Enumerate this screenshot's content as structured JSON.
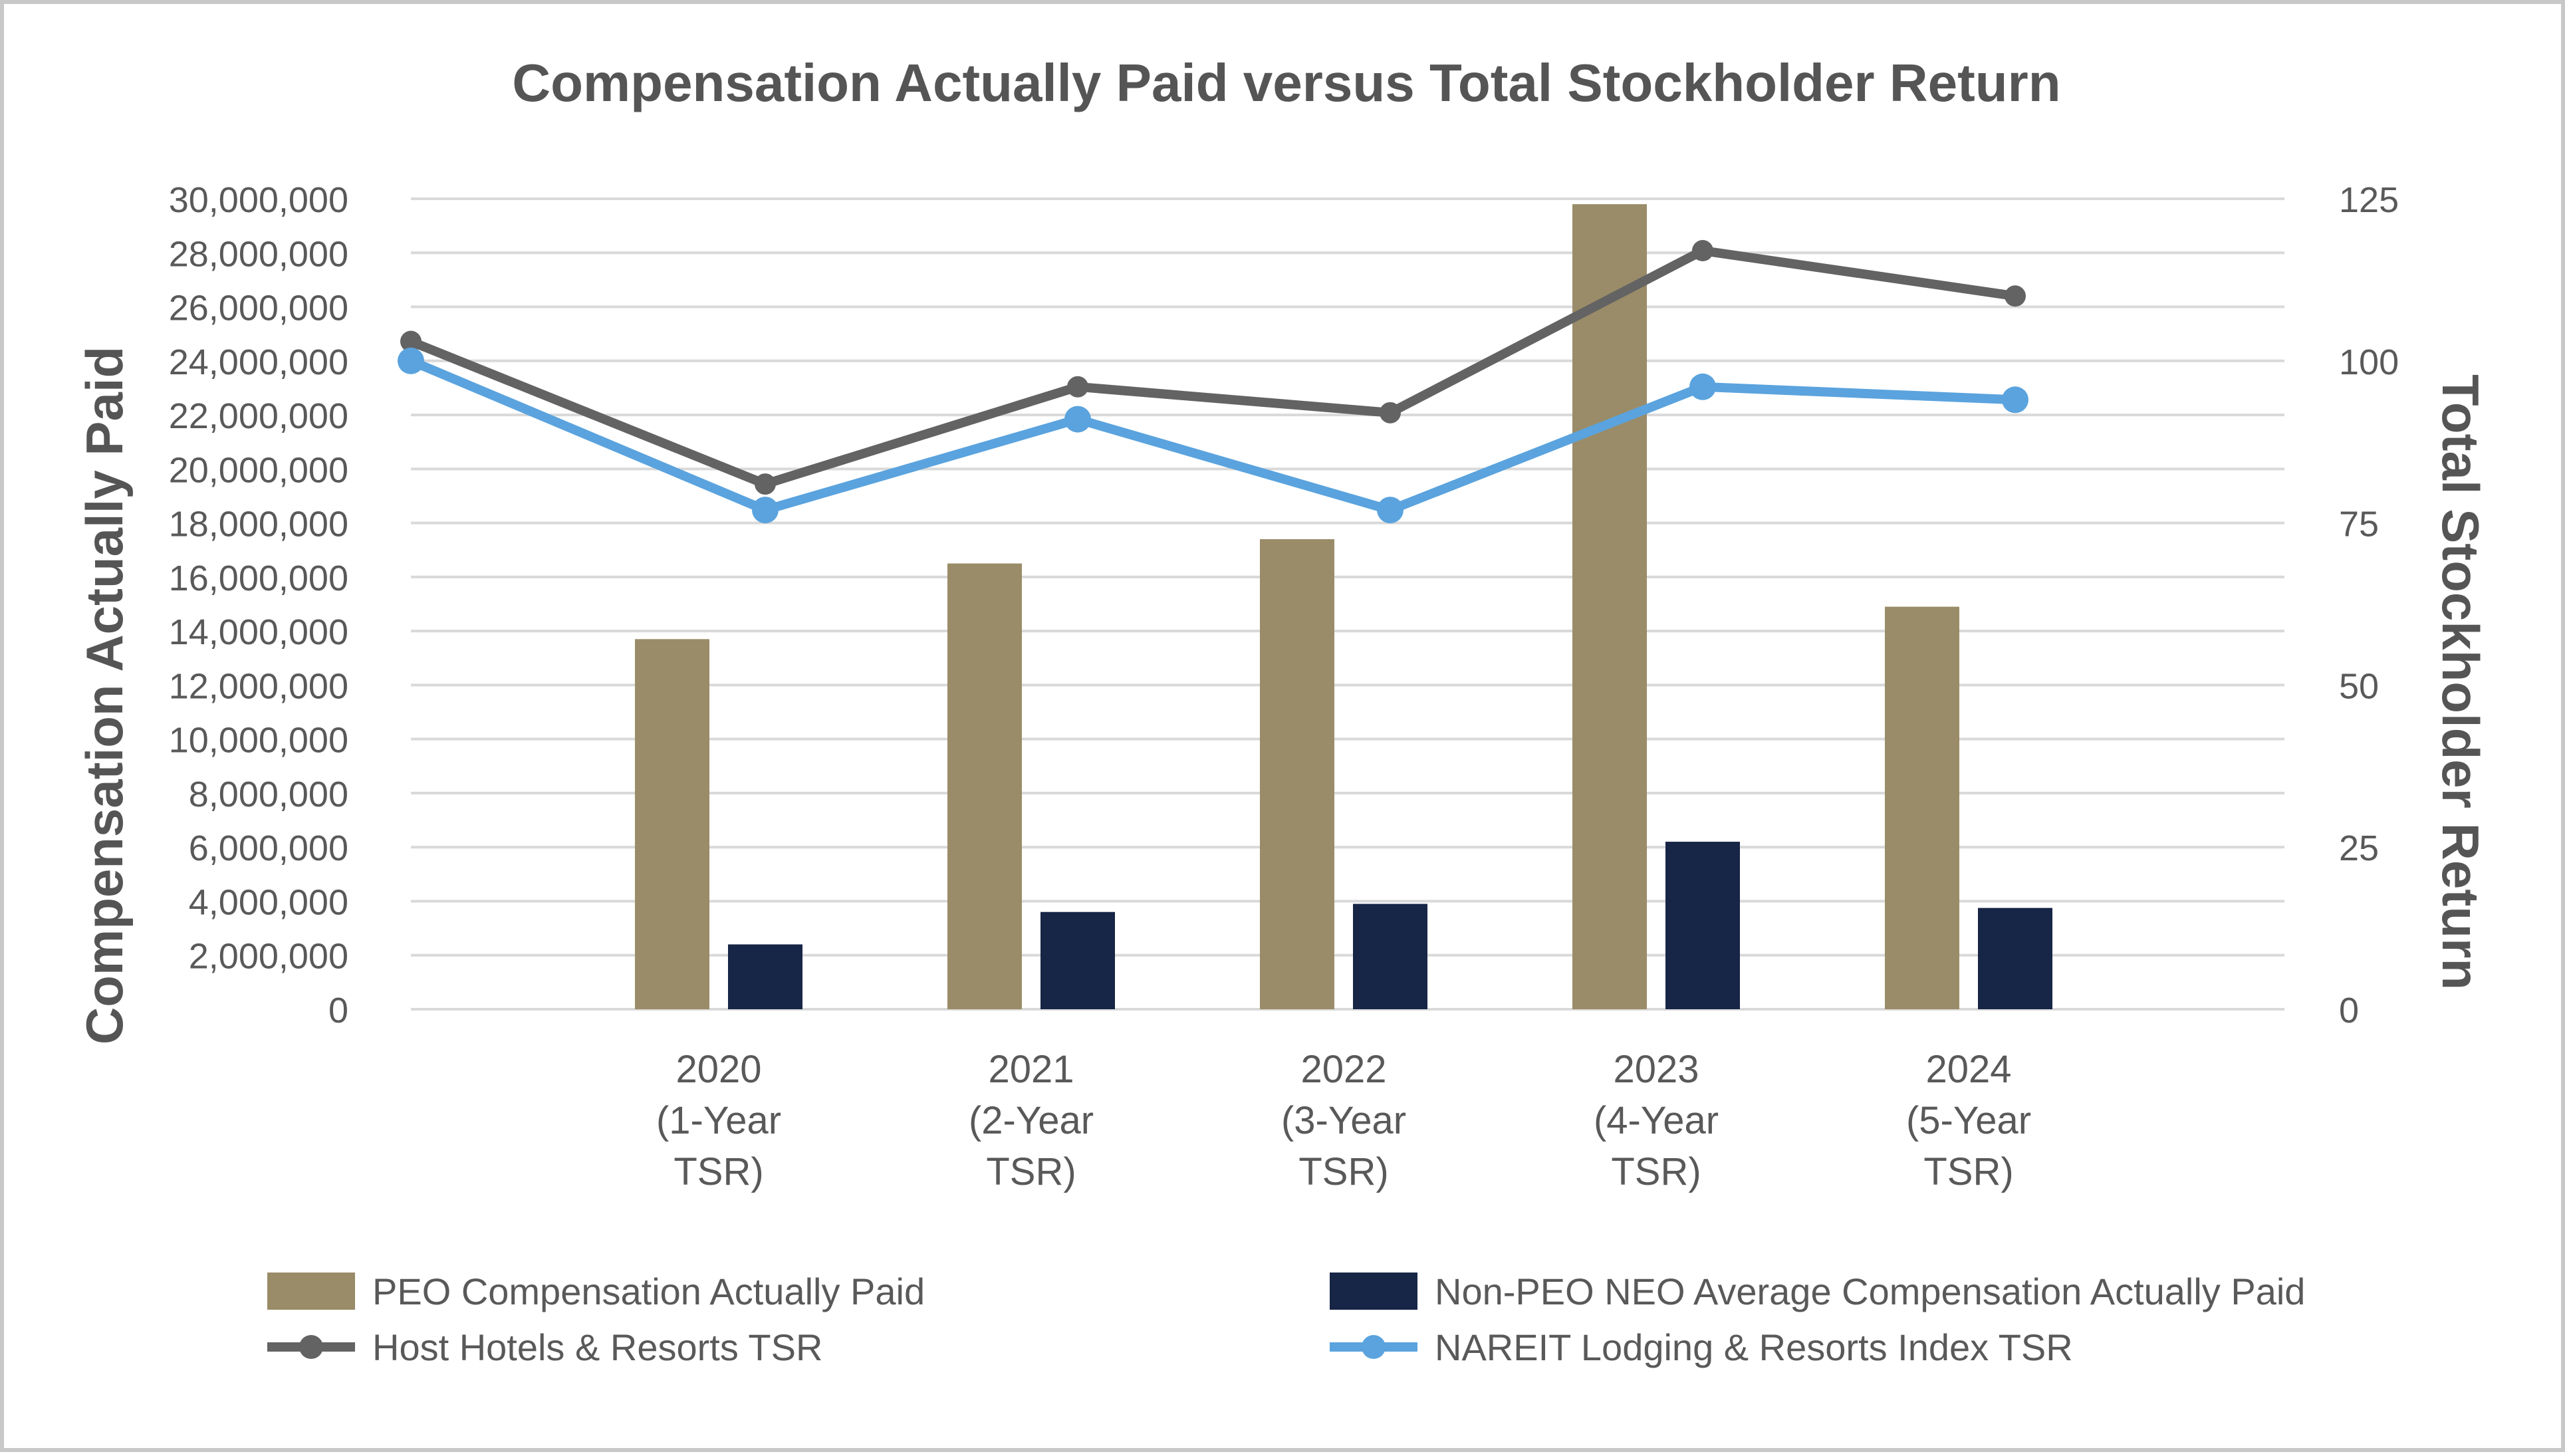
{
  "chart_data": {
    "type": "bar",
    "title": "Compensation Actually Paid versus Total Stockholder Return",
    "ylabel": "Compensation Actually Paid",
    "y2label": "Total Stockholder Return",
    "ylim": [
      0,
      30000000
    ],
    "y2lim": [
      0,
      125
    ],
    "yticks": [
      "0",
      "2,000,000",
      "4,000,000",
      "6,000,000",
      "8,000,000",
      "10,000,000",
      "12,000,000",
      "14,000,000",
      "16,000,000",
      "18,000,000",
      "20,000,000",
      "22,000,000",
      "24,000,000",
      "26,000,000",
      "28,000,000",
      "30,000,000"
    ],
    "y2ticks": [
      "0",
      "25",
      "50",
      "75",
      "100",
      "125"
    ],
    "categories": [
      [
        "2020",
        "(1-Year",
        "TSR)"
      ],
      [
        "2021",
        "(2-Year",
        "TSR)"
      ],
      [
        "2022",
        "(3-Year",
        "TSR)"
      ],
      [
        "2023",
        "(4-Year",
        "TSR)"
      ],
      [
        "2024",
        "(5-Year",
        "TSR)"
      ]
    ],
    "series": [
      {
        "name": "PEO Compensation Actually Paid",
        "kind": "bar",
        "axis": "left",
        "color": "#9a8c68",
        "values": [
          13700000,
          16500000,
          17400000,
          29800000,
          14900000
        ]
      },
      {
        "name": "Non-PEO NEO Average Compensation Actually Paid",
        "kind": "bar",
        "axis": "left",
        "color": "#172546",
        "values": [
          2400000,
          3600000,
          3900000,
          6200000,
          3750000
        ]
      },
      {
        "name": "Host Hotels & Resorts TSR",
        "kind": "line",
        "axis": "right",
        "color": "#636363",
        "start": 103,
        "values": [
          81,
          96,
          92,
          117,
          110
        ]
      },
      {
        "name": "NAREIT Lodging & Resorts Index TSR",
        "kind": "line",
        "axis": "right",
        "color": "#5aa3de",
        "start": 100,
        "values": [
          77,
          91,
          77,
          96,
          94
        ]
      }
    ],
    "legend_position": "bottom",
    "grid": true
  }
}
